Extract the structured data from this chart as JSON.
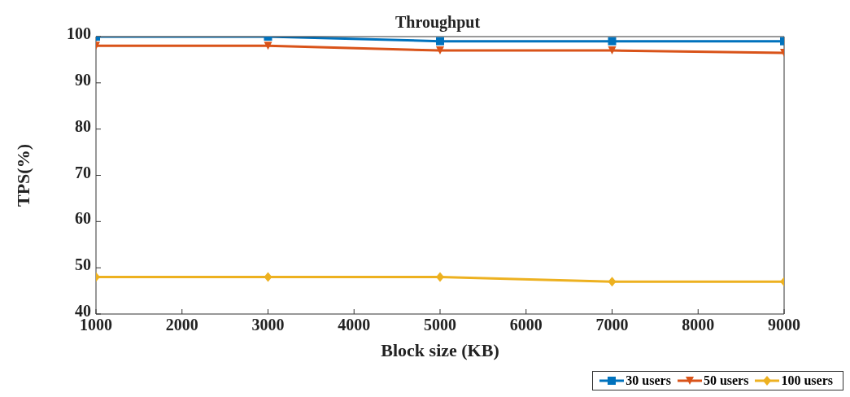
{
  "chart_data": {
    "type": "line",
    "title": "Throughput",
    "xlabel": "Block size (KB)",
    "ylabel": "TPS(%)",
    "x": [
      1000,
      3000,
      5000,
      7000,
      9000
    ],
    "series": [
      {
        "name": "30 users",
        "color": "#0072bd",
        "marker": "square",
        "values": [
          100,
          100,
          99,
          99,
          99
        ]
      },
      {
        "name": "50 users",
        "color": "#d95319",
        "marker": "triangle",
        "values": [
          98,
          98,
          97,
          97,
          96.5
        ]
      },
      {
        "name": "100 users",
        "color": "#edb120",
        "marker": "diamond",
        "values": [
          48,
          48,
          48,
          47,
          47
        ]
      }
    ],
    "xlim": [
      1000,
      9000
    ],
    "xticks": [
      1000,
      2000,
      3000,
      4000,
      5000,
      6000,
      7000,
      8000,
      9000
    ],
    "ylim": [
      40,
      100
    ],
    "yticks": [
      40,
      50,
      60,
      70,
      80,
      90,
      100
    ],
    "grid": false,
    "legend": "bottom right",
    "line_style": "solid"
  }
}
